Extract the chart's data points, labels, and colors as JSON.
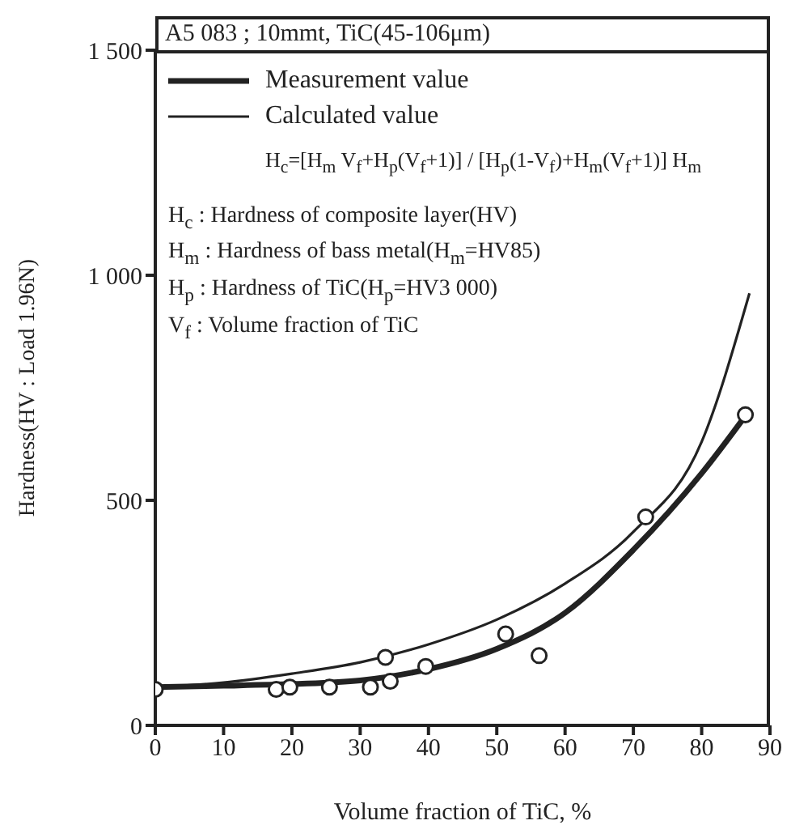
{
  "chart_data": {
    "type": "line",
    "title": "A5 083 ; 10mmt,  TiC(45-106μm)",
    "xlabel": "Volume fraction of TiC, %",
    "ylabel": "Hardness(HV : Load 1.96N)",
    "xlim": [
      0,
      90
    ],
    "xticks": [
      0,
      10,
      20,
      30,
      40,
      50,
      60,
      70,
      80,
      90
    ],
    "ylim": [
      0,
      1500
    ],
    "yticks": [
      0,
      {
        "value": 500,
        "label": "500"
      },
      {
        "value": 1000,
        "label": "1 000"
      },
      {
        "value": 1500,
        "label": "1 500"
      }
    ],
    "legend": "top left",
    "marker": "none",
    "line_style": "solid",
    "annotations": [
      "H$_{c}$=[H$_{m}$ V$_{f}$+H$_{p}$(V$_{f}$+1)] / [H$_{p}$(1-V$_{f}$)+H$_{m}$(V$_{f}$+1)] H$_{m}$",
      "H$_{c}$ : Hardness of composite layer(HV)",
      "H$_{m}$ : Hardness of bass metal(H$_{m}$=HV85)",
      "H$_{p}$ : Hardness of TiC(H$_{p}$=HV3 000)",
      "V$_{f}$ : Volume fraction of TiC"
    ],
    "series": [
      {
        "name": "Measurement value",
        "color": "#222222",
        "x": [
          0,
          10,
          20,
          30,
          40,
          50,
          60,
          70,
          80,
          87
        ],
        "values": [
          85,
          88,
          92,
          100,
          125,
          170,
          250,
          390,
          560,
          700
        ]
      },
      {
        "name": "Calculated value",
        "color": "#222222",
        "x": [
          0,
          10,
          20,
          30,
          40,
          50,
          60,
          70,
          80,
          87
        ],
        "values": [
          85,
          95,
          115,
          140,
          180,
          235,
          315,
          430,
          630,
          960
        ]
      },
      {
        "type": "scatter",
        "color": "#222222",
        "marker": "circle",
        "x": [
          0,
          17.7,
          19.7,
          25.5,
          31.5,
          33.7,
          34.4,
          39.6,
          51.3,
          56.2,
          71.8,
          86.4
        ],
        "values": [
          80,
          80,
          85,
          85,
          85,
          151,
          98,
          131,
          203,
          155,
          463,
          690
        ]
      }
    ]
  }
}
